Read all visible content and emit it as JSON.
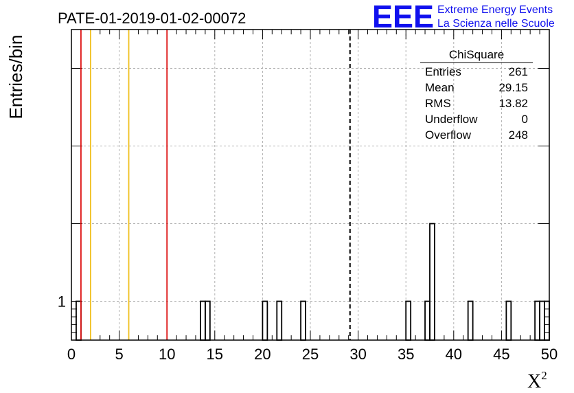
{
  "chart_data": {
    "type": "bar",
    "title": "PATE-01-2019-01-02-00072",
    "xlabel": "X",
    "xlabel_sup": "2",
    "ylabel": "Entries/bin",
    "xlim": [
      0,
      50
    ],
    "ylim": [
      0.5,
      4.5
    ],
    "grid": true,
    "xticks": [
      "0",
      "5",
      "10",
      "15",
      "20",
      "25",
      "30",
      "35",
      "40",
      "45",
      "50"
    ],
    "yticks": [
      "1"
    ],
    "bin_width": 0.5,
    "bins": [
      {
        "x0": 0.5,
        "value": 1
      },
      {
        "x0": 13.5,
        "value": 1
      },
      {
        "x0": 14.0,
        "value": 1
      },
      {
        "x0": 20.0,
        "value": 1
      },
      {
        "x0": 21.5,
        "value": 1
      },
      {
        "x0": 24.0,
        "value": 1
      },
      {
        "x0": 35.0,
        "value": 1
      },
      {
        "x0": 37.0,
        "value": 1
      },
      {
        "x0": 37.5,
        "value": 2
      },
      {
        "x0": 41.5,
        "value": 1
      },
      {
        "x0": 45.5,
        "value": 1
      },
      {
        "x0": 48.5,
        "value": 1
      },
      {
        "x0": 49.0,
        "value": 1
      },
      {
        "x0": 49.5,
        "value": 1
      }
    ],
    "vlines": [
      {
        "x": 1.0,
        "color": "#dd1111",
        "style": "solid"
      },
      {
        "x": 2.0,
        "color": "#f0c020",
        "style": "solid"
      },
      {
        "x": 6.0,
        "color": "#f0c020",
        "style": "solid"
      },
      {
        "x": 10.0,
        "color": "#dd1111",
        "style": "solid"
      },
      {
        "x": 29.15,
        "color": "#000000",
        "style": "dashed"
      }
    ],
    "stats": {
      "title": "ChiSquare",
      "rows": [
        {
          "label": "Entries",
          "value": "261"
        },
        {
          "label": "Mean",
          "value": "29.15"
        },
        {
          "label": "RMS",
          "value": "13.82"
        },
        {
          "label": "Underflow",
          "value": "0"
        },
        {
          "label": "Overflow",
          "value": "248"
        }
      ]
    }
  },
  "logo": {
    "mark": "EEE",
    "line1": "Extreme Energy Events",
    "line2": "La Scienza nelle Scuole",
    "color": "#1010ee"
  }
}
